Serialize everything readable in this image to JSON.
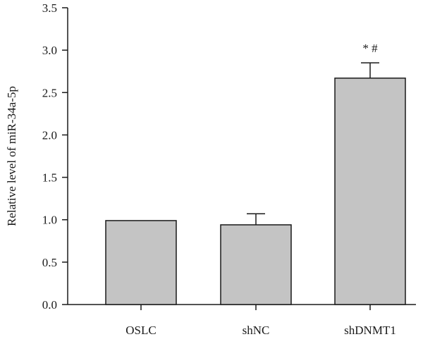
{
  "chart_data": {
    "type": "bar",
    "categories": [
      "OSLC",
      "shNC",
      "shDNMT1"
    ],
    "values": [
      0.99,
      0.94,
      2.67
    ],
    "errors": [
      0,
      0.13,
      0.18
    ],
    "annotations": [
      "",
      "",
      "* #"
    ],
    "xlabel": "",
    "ylabel": "Relative level of miR-34a-5p",
    "ylim": [
      0,
      3.5
    ],
    "yticks": [
      "0.0",
      "0.5",
      "1.0",
      "1.5",
      "2.0",
      "2.5",
      "3.0",
      "3.5"
    ],
    "grid": false,
    "bar_color": "#c4c4c4",
    "edge_color": "#1a1a1a"
  }
}
